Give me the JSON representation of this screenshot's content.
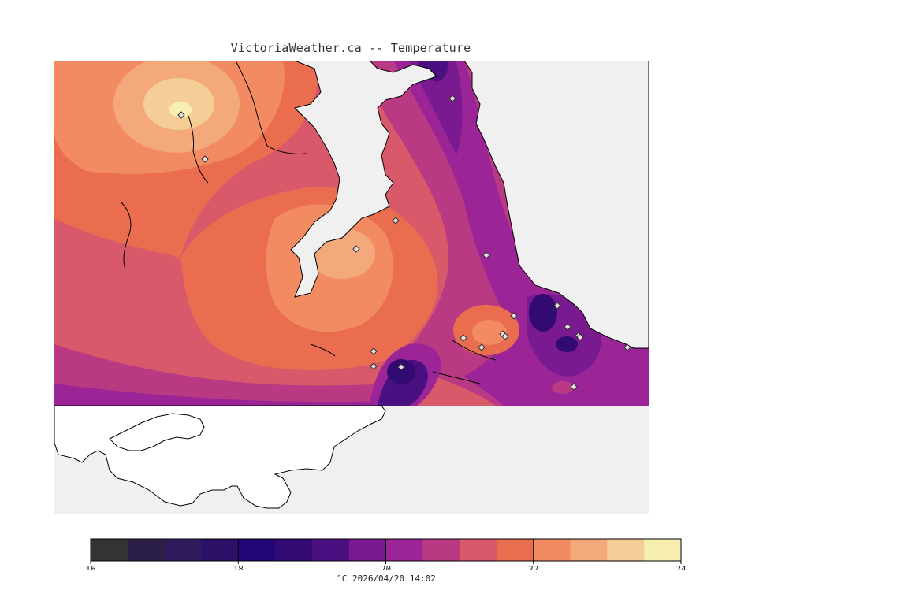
{
  "header": {
    "title": "VictoriaWeather.ca -- Temperature"
  },
  "legend": {
    "colors": [
      "#333333",
      "#2c1f47",
      "#2f1a5c",
      "#2c0f66",
      "#220575",
      "#320a72",
      "#4a0f80",
      "#7a1a90",
      "#9b2596",
      "#b93a83",
      "#d85a6a",
      "#ea6d4f",
      "#f28b62",
      "#f4a97c",
      "#f5cd97",
      "#f7efb2"
    ],
    "ticks": [
      "16",
      "18",
      "20",
      "22",
      "24"
    ],
    "unit_label": "°C  2026/04/20 14:02"
  },
  "map": {
    "land_color": "#ffffff",
    "water_color": "#f0f0f0",
    "station_count": 20
  }
}
